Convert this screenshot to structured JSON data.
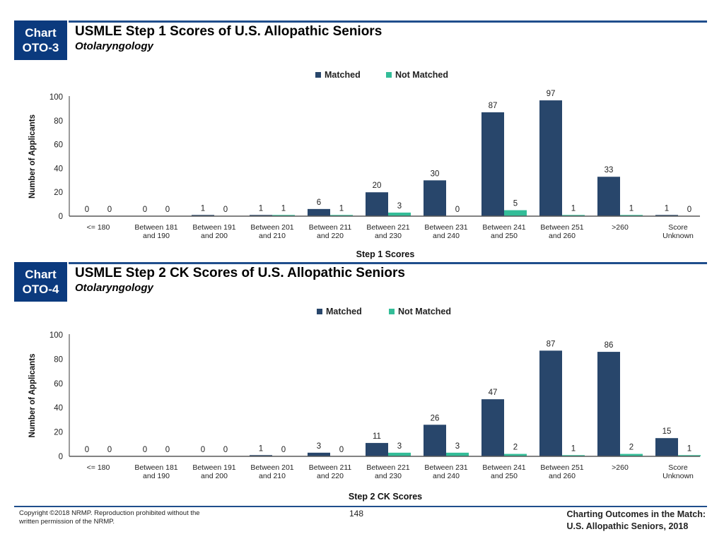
{
  "colors": {
    "matched": "#28466b",
    "not_matched": "#33bd98",
    "badge": "#0b3a7e",
    "rule": "#1f4e8c",
    "axis": "#595959"
  },
  "chart_data": [
    {
      "type": "bar",
      "badge": [
        "Chart",
        "OTO-3"
      ],
      "title": "USMLE Step 1 Scores of U.S. Allopathic Seniors",
      "subtitle": "Otolaryngology",
      "xlabel": "Step 1 Scores",
      "ylabel": "Number of Applicants",
      "ylim": [
        0,
        100
      ],
      "yticks": [
        0,
        20,
        40,
        60,
        80,
        100
      ],
      "grid": false,
      "legend_position": "top-center",
      "categories": [
        [
          "<= 180"
        ],
        [
          "Between 181",
          "and 190"
        ],
        [
          "Between 191",
          "and 200"
        ],
        [
          "Between 201",
          "and 210"
        ],
        [
          "Between 211",
          "and 220"
        ],
        [
          "Between 221",
          "and 230"
        ],
        [
          "Between 231",
          "and 240"
        ],
        [
          "Between 241",
          "and 250"
        ],
        [
          "Between 251",
          "and 260"
        ],
        [
          ">260"
        ],
        [
          "Score",
          "Unknown"
        ]
      ],
      "series": [
        {
          "name": "Matched",
          "values": [
            0,
            0,
            1,
            1,
            6,
            20,
            30,
            87,
            97,
            33,
            1
          ]
        },
        {
          "name": "Not Matched",
          "values": [
            0,
            0,
            0,
            1,
            1,
            3,
            0,
            5,
            1,
            1,
            0
          ]
        }
      ]
    },
    {
      "type": "bar",
      "badge": [
        "Chart",
        "OTO-4"
      ],
      "title": "USMLE Step 2 CK Scores of U.S. Allopathic Seniors",
      "subtitle": "Otolaryngology",
      "xlabel": "Step 2 CK Scores",
      "ylabel": "Number of Applicants",
      "ylim": [
        0,
        100
      ],
      "yticks": [
        0,
        20,
        40,
        60,
        80,
        100
      ],
      "grid": false,
      "legend_position": "top-center",
      "categories": [
        [
          "<= 180"
        ],
        [
          "Between 181",
          "and 190"
        ],
        [
          "Between 191",
          "and 200"
        ],
        [
          "Between 201",
          "and 210"
        ],
        [
          "Between 211",
          "and 220"
        ],
        [
          "Between 221",
          "and 230"
        ],
        [
          "Between 231",
          "and 240"
        ],
        [
          "Between 241",
          "and 250"
        ],
        [
          "Between 251",
          "and 260"
        ],
        [
          ">260"
        ],
        [
          "Score",
          "Unknown"
        ]
      ],
      "series": [
        {
          "name": "Matched",
          "values": [
            0,
            0,
            0,
            1,
            3,
            11,
            26,
            47,
            87,
            86,
            15
          ]
        },
        {
          "name": "Not Matched",
          "values": [
            0,
            0,
            0,
            0,
            0,
            3,
            3,
            2,
            1,
            2,
            1
          ]
        }
      ]
    }
  ],
  "footer": {
    "copyright": "Copyright ©2018 NRMP. Reproduction prohibited without the written permission of the NRMP.",
    "page_number": "148",
    "publication_line1": "Charting Outcomes in the Match:",
    "publication_line2": "U.S. Allopathic Seniors, 2018"
  }
}
